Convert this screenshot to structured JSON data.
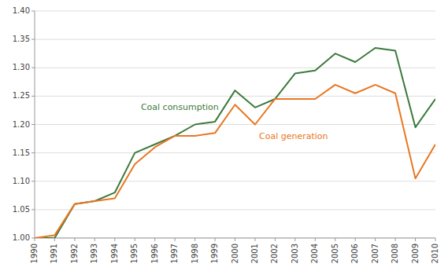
{
  "chart_data": {
    "type": "line",
    "x": [
      1990,
      1991,
      1992,
      1993,
      1994,
      1995,
      1996,
      1997,
      1998,
      1999,
      2000,
      2001,
      2002,
      2003,
      2004,
      2005,
      2006,
      2007,
      2008,
      2009,
      2010
    ],
    "series": [
      {
        "color": "#3c7a3c",
        "values": [
          1.0,
          1.0,
          1.06,
          1.065,
          1.08,
          1.15,
          1.165,
          1.18,
          1.2,
          1.205,
          1.26,
          1.23,
          1.245,
          1.29,
          1.295,
          1.325,
          1.31,
          1.335,
          1.33,
          1.195,
          1.245
        ]
      },
      {
        "color": "#e87722",
        "values": [
          1.0,
          1.005,
          1.06,
          1.065,
          1.07,
          1.13,
          1.16,
          1.18,
          1.18,
          1.185,
          1.235,
          1.2,
          1.245,
          1.245,
          1.245,
          1.27,
          1.255,
          1.27,
          1.255,
          1.105,
          1.165
        ]
      }
    ],
    "annotations": [
      {
        "text": "Coal consumption",
        "x": 1995.3,
        "y": 1.225,
        "color": "#3c7a3c"
      },
      {
        "text": "Coal generation",
        "x": 2001.2,
        "y": 1.175,
        "color": "#e87722"
      }
    ],
    "xlim": [
      1990,
      2010
    ],
    "xticks": [
      1990,
      1991,
      1992,
      1993,
      1994,
      1995,
      1996,
      1997,
      1998,
      1999,
      2000,
      2001,
      2002,
      2003,
      2004,
      2005,
      2006,
      2007,
      2008,
      2009,
      2010
    ],
    "ylim": [
      1.0,
      1.4
    ],
    "yticks": [
      {
        "value": 1.0,
        "label": "1.00"
      },
      {
        "value": 1.05,
        "label": "1.05"
      },
      {
        "value": 1.1,
        "label": "1.10"
      },
      {
        "value": 1.15,
        "label": "1.15"
      },
      {
        "value": 1.2,
        "label": "1.20"
      },
      {
        "value": 1.25,
        "label": "1.25"
      },
      {
        "value": 1.3,
        "label": "1.30"
      },
      {
        "value": 1.35,
        "label": "1.35"
      },
      {
        "value": 1.4,
        "label": "1.40"
      }
    ],
    "grid": true
  }
}
